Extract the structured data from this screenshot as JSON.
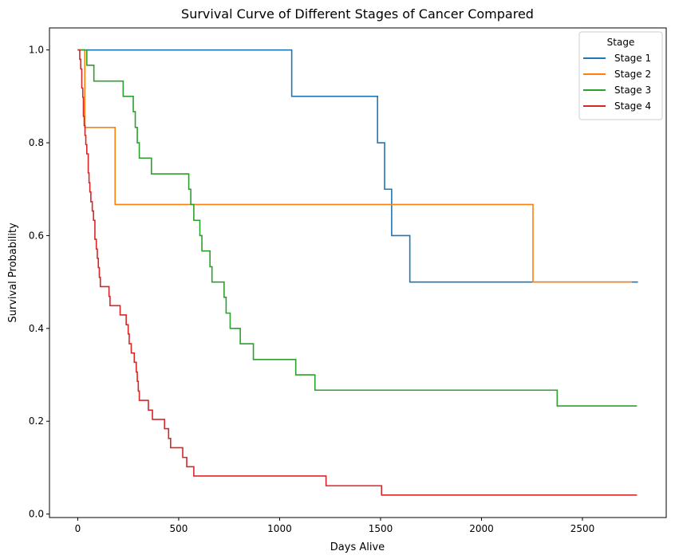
{
  "chart_data": {
    "type": "line",
    "step": "post",
    "title": "Survival Curve of Different Stages of Cancer Compared",
    "xlabel": "Days Alive",
    "ylabel": "Survival Probability",
    "xlim": [
      -140,
      2915
    ],
    "ylim": [
      -0.0075,
      1.0475
    ],
    "xticks": [
      0,
      500,
      1000,
      1500,
      2000,
      2500
    ],
    "yticks": [
      0.0,
      0.2,
      0.4,
      0.6,
      0.8,
      1.0
    ],
    "xtick_labels": [
      "0",
      "500",
      "1000",
      "1500",
      "2000",
      "2500"
    ],
    "ytick_labels": [
      "0.0",
      "0.2",
      "0.4",
      "0.6",
      "0.8",
      "1.0"
    ],
    "legend": {
      "title": "Stage",
      "placement": "top-right"
    },
    "grid": false,
    "series": [
      {
        "name": "Stage 1",
        "color": "#1f77b4",
        "points": [
          [
            0,
            1.0
          ],
          [
            1060,
            0.9
          ],
          [
            1485,
            0.8
          ],
          [
            1520,
            0.7
          ],
          [
            1555,
            0.6
          ],
          [
            1645,
            0.5
          ],
          [
            2775,
            0.5
          ]
        ]
      },
      {
        "name": "Stage 2",
        "color": "#ff7f0e",
        "points": [
          [
            0,
            1.0
          ],
          [
            35,
            0.833
          ],
          [
            185,
            0.667
          ],
          [
            2255,
            0.5
          ],
          [
            2745,
            0.5
          ]
        ]
      },
      {
        "name": "Stage 3",
        "color": "#2ca02c",
        "points": [
          [
            0,
            1.0
          ],
          [
            45,
            0.967
          ],
          [
            80,
            0.933
          ],
          [
            225,
            0.9
          ],
          [
            275,
            0.867
          ],
          [
            285,
            0.833
          ],
          [
            295,
            0.8
          ],
          [
            305,
            0.767
          ],
          [
            365,
            0.733
          ],
          [
            550,
            0.7
          ],
          [
            560,
            0.667
          ],
          [
            575,
            0.633
          ],
          [
            605,
            0.6
          ],
          [
            615,
            0.567
          ],
          [
            655,
            0.533
          ],
          [
            665,
            0.5
          ],
          [
            725,
            0.467
          ],
          [
            735,
            0.433
          ],
          [
            755,
            0.4
          ],
          [
            805,
            0.367
          ],
          [
            870,
            0.333
          ],
          [
            1080,
            0.3
          ],
          [
            1175,
            0.267
          ],
          [
            2375,
            0.233
          ],
          [
            2770,
            0.233
          ]
        ]
      },
      {
        "name": "Stage 4",
        "color": "#d62728",
        "points": [
          [
            0,
            1.0
          ],
          [
            10,
            0.98
          ],
          [
            15,
            0.959
          ],
          [
            20,
            0.918
          ],
          [
            25,
            0.898
          ],
          [
            28,
            0.857
          ],
          [
            32,
            0.837
          ],
          [
            36,
            0.816
          ],
          [
            40,
            0.796
          ],
          [
            45,
            0.776
          ],
          [
            52,
            0.735
          ],
          [
            56,
            0.714
          ],
          [
            60,
            0.694
          ],
          [
            65,
            0.673
          ],
          [
            72,
            0.653
          ],
          [
            78,
            0.633
          ],
          [
            85,
            0.592
          ],
          [
            92,
            0.571
          ],
          [
            97,
            0.551
          ],
          [
            102,
            0.531
          ],
          [
            107,
            0.51
          ],
          [
            112,
            0.49
          ],
          [
            155,
            0.469
          ],
          [
            160,
            0.449
          ],
          [
            210,
            0.429
          ],
          [
            240,
            0.408
          ],
          [
            250,
            0.388
          ],
          [
            255,
            0.367
          ],
          [
            265,
            0.347
          ],
          [
            280,
            0.327
          ],
          [
            290,
            0.306
          ],
          [
            295,
            0.286
          ],
          [
            300,
            0.265
          ],
          [
            305,
            0.245
          ],
          [
            350,
            0.224
          ],
          [
            370,
            0.204
          ],
          [
            430,
            0.184
          ],
          [
            450,
            0.163
          ],
          [
            460,
            0.143
          ],
          [
            520,
            0.122
          ],
          [
            540,
            0.102
          ],
          [
            575,
            0.082
          ],
          [
            1230,
            0.061
          ],
          [
            1505,
            0.041
          ],
          [
            2770,
            0.041
          ]
        ]
      }
    ]
  }
}
